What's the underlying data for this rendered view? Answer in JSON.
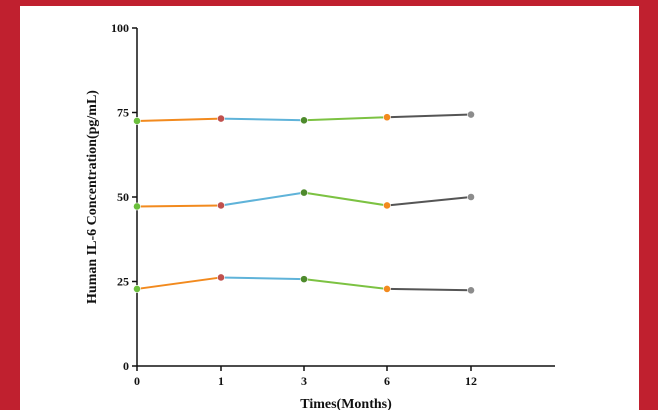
{
  "chart_data": {
    "type": "line",
    "xlabel": "Times(Months)",
    "ylabel": "Human IL-6 Concentration(pg/mL)",
    "x_ticks": [
      "0",
      "1",
      "3",
      "6",
      "12"
    ],
    "y_ticks": [
      "0",
      "25",
      "50",
      "75",
      "100"
    ],
    "ylim": [
      0,
      100
    ],
    "grid": false,
    "marker_colors": [
      "#6bbf3c",
      "#c0504d",
      "#4e8a2c",
      "#f28a1e",
      "#8c8c8c"
    ],
    "segment_colors": [
      "#f28a1e",
      "#5fb3d9",
      "#7cc242",
      "#555555"
    ],
    "series": [
      {
        "values": [
          72.5,
          73.2,
          72.7,
          73.6,
          74.4
        ]
      },
      {
        "values": [
          47.2,
          47.5,
          51.3,
          47.5,
          50.0
        ]
      },
      {
        "values": [
          22.8,
          26.2,
          25.7,
          22.8,
          22.4
        ]
      }
    ]
  }
}
